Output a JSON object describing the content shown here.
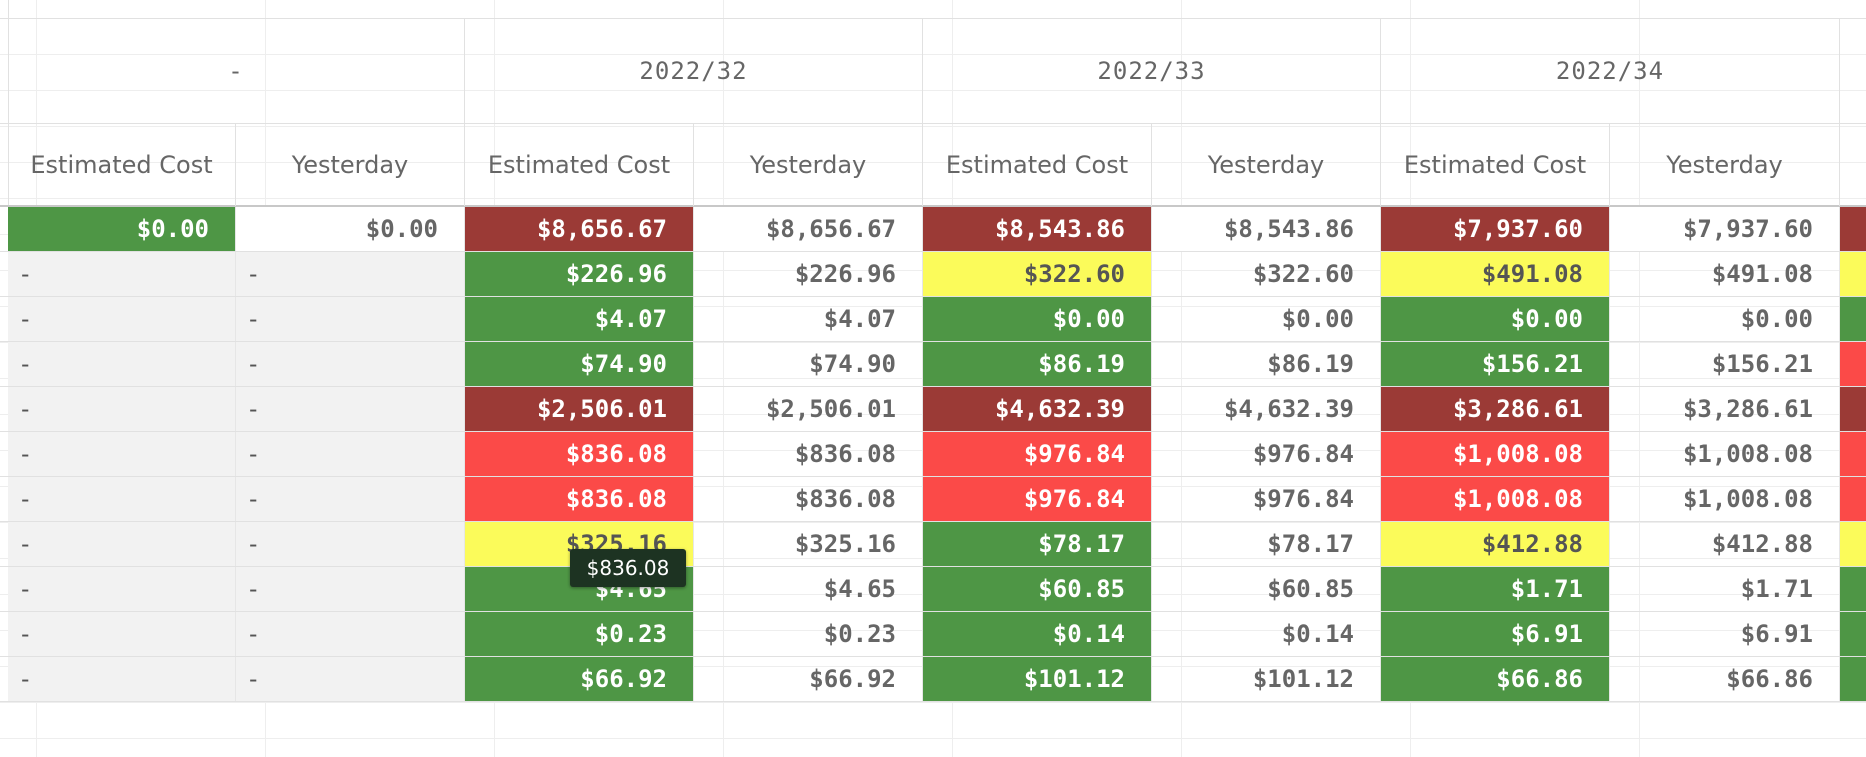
{
  "colors": {
    "darkred": "#9b3a36",
    "red": "#fb4a48",
    "yellow": "#fbfb5a",
    "green": "#4e9645",
    "plainText": "#666666",
    "dashBg": "#f2f2f2"
  },
  "dimension_headers": [
    "-",
    "2022/32",
    "2022/33",
    "2022/34"
  ],
  "measure_headers": [
    "Estimated Cost",
    "Yesterday",
    "Estimated Cost",
    "Yesterday",
    "Estimated Cost",
    "Yesterday",
    "Estimated Cost",
    "Yesterday"
  ],
  "rows": [
    [
      {
        "t": "$0.00",
        "c": "green"
      },
      {
        "t": "$0.00",
        "c": "plain"
      },
      {
        "t": "$8,656.67",
        "c": "darkred"
      },
      {
        "t": "$8,656.67",
        "c": "plain"
      },
      {
        "t": "$8,543.86",
        "c": "darkred"
      },
      {
        "t": "$8,543.86",
        "c": "plain"
      },
      {
        "t": "$7,937.60",
        "c": "darkred"
      },
      {
        "t": "$7,937.60",
        "c": "plain"
      },
      {
        "t": "",
        "c": "darkred"
      }
    ],
    [
      {
        "t": "-",
        "c": "dash"
      },
      {
        "t": "-",
        "c": "dash"
      },
      {
        "t": "$226.96",
        "c": "green"
      },
      {
        "t": "$226.96",
        "c": "plain"
      },
      {
        "t": "$322.60",
        "c": "yellow"
      },
      {
        "t": "$322.60",
        "c": "plain"
      },
      {
        "t": "$491.08",
        "c": "yellow"
      },
      {
        "t": "$491.08",
        "c": "plain"
      },
      {
        "t": "",
        "c": "yellow"
      }
    ],
    [
      {
        "t": "-",
        "c": "dash"
      },
      {
        "t": "-",
        "c": "dash"
      },
      {
        "t": "$4.07",
        "c": "green"
      },
      {
        "t": "$4.07",
        "c": "plain"
      },
      {
        "t": "$0.00",
        "c": "green"
      },
      {
        "t": "$0.00",
        "c": "plain"
      },
      {
        "t": "$0.00",
        "c": "green"
      },
      {
        "t": "$0.00",
        "c": "plain"
      },
      {
        "t": "",
        "c": "green"
      }
    ],
    [
      {
        "t": "-",
        "c": "dash"
      },
      {
        "t": "-",
        "c": "dash"
      },
      {
        "t": "$74.90",
        "c": "green"
      },
      {
        "t": "$74.90",
        "c": "plain"
      },
      {
        "t": "$86.19",
        "c": "green"
      },
      {
        "t": "$86.19",
        "c": "plain"
      },
      {
        "t": "$156.21",
        "c": "green"
      },
      {
        "t": "$156.21",
        "c": "plain"
      },
      {
        "t": "",
        "c": "red"
      }
    ],
    [
      {
        "t": "-",
        "c": "dash"
      },
      {
        "t": "-",
        "c": "dash"
      },
      {
        "t": "$2,506.01",
        "c": "darkred"
      },
      {
        "t": "$2,506.01",
        "c": "plain"
      },
      {
        "t": "$4,632.39",
        "c": "darkred"
      },
      {
        "t": "$4,632.39",
        "c": "plain"
      },
      {
        "t": "$3,286.61",
        "c": "darkred"
      },
      {
        "t": "$3,286.61",
        "c": "plain"
      },
      {
        "t": "",
        "c": "darkred"
      }
    ],
    [
      {
        "t": "-",
        "c": "dash"
      },
      {
        "t": "-",
        "c": "dash"
      },
      {
        "t": "$836.08",
        "c": "red"
      },
      {
        "t": "$836.08",
        "c": "plain"
      },
      {
        "t": "$976.84",
        "c": "red"
      },
      {
        "t": "$976.84",
        "c": "plain"
      },
      {
        "t": "$1,008.08",
        "c": "red"
      },
      {
        "t": "$1,008.08",
        "c": "plain"
      },
      {
        "t": "",
        "c": "red"
      }
    ],
    [
      {
        "t": "-",
        "c": "dash"
      },
      {
        "t": "-",
        "c": "dash"
      },
      {
        "t": "$836.08",
        "c": "red"
      },
      {
        "t": "$836.08",
        "c": "plain"
      },
      {
        "t": "$976.84",
        "c": "red"
      },
      {
        "t": "$976.84",
        "c": "plain"
      },
      {
        "t": "$1,008.08",
        "c": "red"
      },
      {
        "t": "$1,008.08",
        "c": "plain"
      },
      {
        "t": "",
        "c": "red"
      }
    ],
    [
      {
        "t": "-",
        "c": "dash"
      },
      {
        "t": "-",
        "c": "dash"
      },
      {
        "t": "$325.16",
        "c": "yellow"
      },
      {
        "t": "$325.16",
        "c": "plain"
      },
      {
        "t": "$78.17",
        "c": "green"
      },
      {
        "t": "$78.17",
        "c": "plain"
      },
      {
        "t": "$412.88",
        "c": "yellow"
      },
      {
        "t": "$412.88",
        "c": "plain"
      },
      {
        "t": "",
        "c": "yellow"
      }
    ],
    [
      {
        "t": "-",
        "c": "dash"
      },
      {
        "t": "-",
        "c": "dash"
      },
      {
        "t": "$4.65",
        "c": "green"
      },
      {
        "t": "$4.65",
        "c": "plain"
      },
      {
        "t": "$60.85",
        "c": "green"
      },
      {
        "t": "$60.85",
        "c": "plain"
      },
      {
        "t": "$1.71",
        "c": "green"
      },
      {
        "t": "$1.71",
        "c": "plain"
      },
      {
        "t": "",
        "c": "green"
      }
    ],
    [
      {
        "t": "-",
        "c": "dash"
      },
      {
        "t": "-",
        "c": "dash"
      },
      {
        "t": "$0.23",
        "c": "green"
      },
      {
        "t": "$0.23",
        "c": "plain"
      },
      {
        "t": "$0.14",
        "c": "green"
      },
      {
        "t": "$0.14",
        "c": "plain"
      },
      {
        "t": "$6.91",
        "c": "green"
      },
      {
        "t": "$6.91",
        "c": "plain"
      },
      {
        "t": "",
        "c": "green"
      }
    ],
    [
      {
        "t": "-",
        "c": "dash"
      },
      {
        "t": "-",
        "c": "dash"
      },
      {
        "t": "$66.92",
        "c": "green"
      },
      {
        "t": "$66.92",
        "c": "plain"
      },
      {
        "t": "$101.12",
        "c": "green"
      },
      {
        "t": "$101.12",
        "c": "plain"
      },
      {
        "t": "$66.86",
        "c": "green"
      },
      {
        "t": "$66.86",
        "c": "plain"
      },
      {
        "t": "",
        "c": "green"
      }
    ]
  ],
  "tooltip": {
    "text": "$836.08"
  }
}
